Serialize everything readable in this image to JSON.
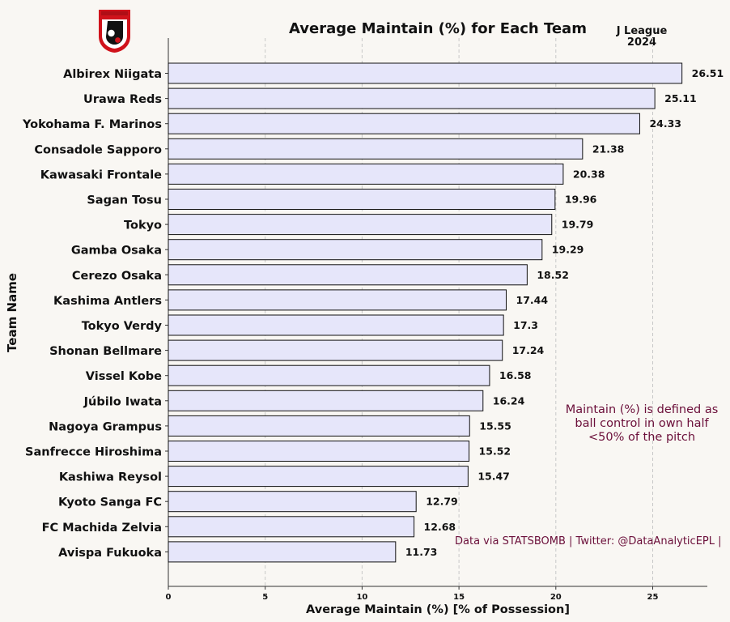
{
  "chart_data": {
    "type": "bar",
    "orientation": "horizontal",
    "title": "Average Maintain (%) for Each Team",
    "subtitle_lines": [
      "J League",
      "2024"
    ],
    "xlabel": "Average Maintain (%) [% of Possession]",
    "ylabel": "Team Name",
    "xlim": [
      0,
      28
    ],
    "xticks": [
      0,
      5,
      10,
      15,
      20,
      25
    ],
    "grid": "vertical dashed",
    "bar_color": "#e6e6fa",
    "bar_edge_color": "#111111",
    "note_color": "#6b0f3a",
    "categories": [
      "Albirex Niigata",
      "Urawa Reds",
      "Yokohama F. Marinos",
      "Consadole Sapporo",
      "Kawasaki Frontale",
      "Sagan Tosu",
      "Tokyo",
      "Gamba Osaka",
      "Cerezo Osaka",
      "Kashima Antlers",
      "Tokyo Verdy",
      "Shonan Bellmare",
      "Vissel Kobe",
      "Júbilo Iwata",
      "Nagoya Grampus",
      "Sanfrecce Hiroshima",
      "Kashiwa Reysol",
      "Kyoto Sanga FC",
      "FC Machida Zelvia",
      "Avispa Fukuoka"
    ],
    "values": [
      26.51,
      25.11,
      24.33,
      21.38,
      20.38,
      19.96,
      19.79,
      19.29,
      18.52,
      17.44,
      17.3,
      17.24,
      16.58,
      16.24,
      15.55,
      15.52,
      15.47,
      12.79,
      12.68,
      11.73
    ],
    "value_labels": [
      "26.51",
      "25.11",
      "24.33",
      "21.38",
      "20.38",
      "19.96",
      "19.79",
      "19.29",
      "18.52",
      "17.44",
      "17.3",
      "17.24",
      "16.58",
      "16.24",
      "15.55",
      "15.52",
      "15.47",
      "12.79",
      "12.68",
      "11.73"
    ],
    "annotations": [
      "Maintain (%) is defined as",
      "ball control in own half",
      "<50% of the pitch"
    ],
    "credit": "Data via STATSBOMB | Twitter: @DataAnalyticEPL |"
  },
  "logo": {
    "name": "J League logo",
    "colors": [
      "#d0121b",
      "#ffffff",
      "#111111"
    ]
  }
}
